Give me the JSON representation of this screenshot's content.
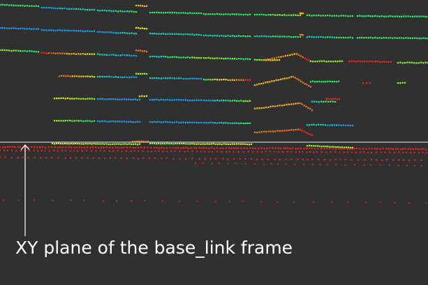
{
  "window": {
    "background": "#303030"
  },
  "annotation": {
    "caption": "XY plane of the base_link frame",
    "caption_color": "#ffffff",
    "plane_line_color": "#c8c8c8",
    "arrow_color": "#ffffff"
  },
  "point_cloud": {
    "color_scale": [
      "#ff2020",
      "#ff7a1a",
      "#ffc21a",
      "#e8f21a",
      "#9aff2a",
      "#2aff6a",
      "#1adcc8",
      "#1aa8ff"
    ],
    "ground_color": "#ff2020"
  }
}
